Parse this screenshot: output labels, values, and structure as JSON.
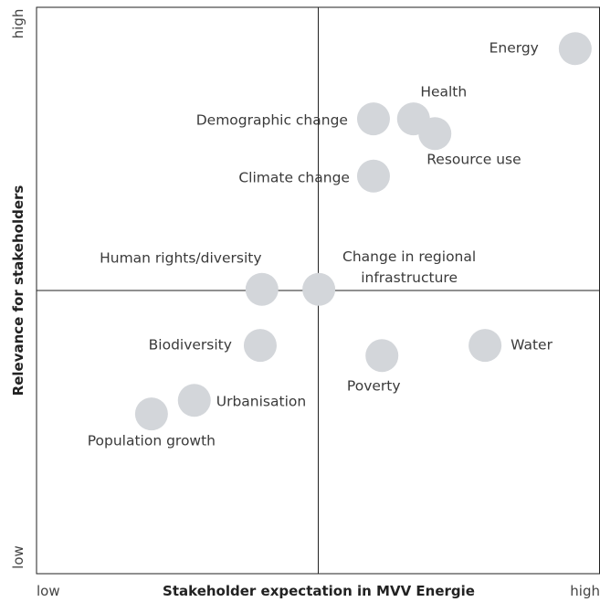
{
  "chart_data": {
    "type": "scatter",
    "xlabel": "Stakeholder expectation in MVV Energie",
    "ylabel": "Relevance for stakeholders",
    "xlim": [
      0,
      100
    ],
    "ylim": [
      0,
      100
    ],
    "xticks": [
      {
        "value": 0,
        "label": "low"
      },
      {
        "value": 100,
        "label": "high"
      }
    ],
    "yticks": [
      {
        "value": 0,
        "label": "low"
      },
      {
        "value": 100,
        "label": "high"
      }
    ],
    "color": "#d3d6da",
    "labels": [
      "Energy",
      "Health",
      "Demographic change",
      "Resource use",
      "Climate change",
      "Human rights/diversity",
      "Change in regional infrastructure",
      "Biodiversity",
      "Poverty",
      "Water",
      "Urbanisation",
      "Population growth"
    ],
    "x": [
      95.6,
      66.9,
      59.8,
      70.7,
      59.8,
      40.0,
      50.1,
      39.7,
      61.3,
      79.6,
      28.0,
      20.4
    ],
    "values": [
      92.7,
      80.3,
      80.3,
      77.7,
      70.2,
      50.2,
      50.2,
      40.3,
      38.5,
      40.3,
      30.6,
      28.2
    ]
  }
}
